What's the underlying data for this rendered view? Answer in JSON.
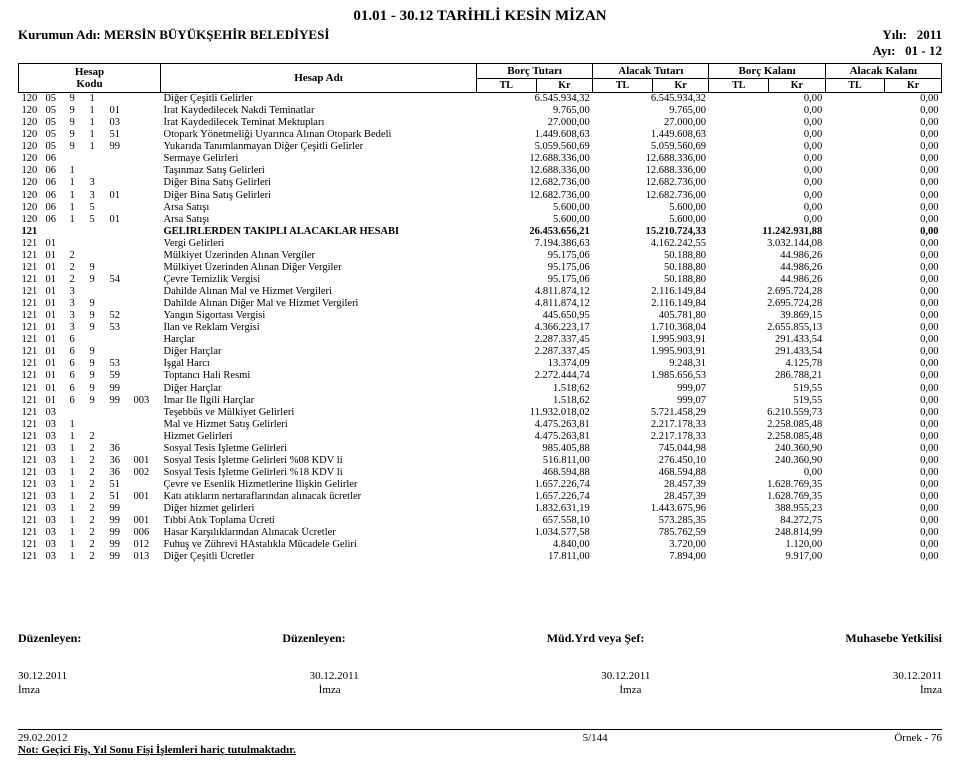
{
  "header": {
    "title": "01.01 - 30.12 TARİHLİ KESİN MİZAN",
    "year_label": "Yılı:",
    "year_value": "2011",
    "kurum_label": "Kurumun Adı:",
    "kurum_value": "MERSİN BÜYÜKŞEHİR BELEDİYESİ",
    "ay_label": "Ayı:",
    "ay_value": "01 - 12"
  },
  "columns": {
    "hesap_kodu": "Hesap\nKodu",
    "hesap_adi": "Hesap Adı",
    "borc_tutari": "Borç Tutarı",
    "alacak_tutari": "Alacak Tutarı",
    "borc_kalani": "Borç Kalanı",
    "alacak_kalani": "Alacak Kalanı",
    "tl": "TL",
    "kr": "Kr"
  },
  "rows": [
    {
      "k": [
        "120",
        "05",
        "9",
        "1",
        "",
        ""
      ],
      "adi": "Diğer Çeşitli Gelirler",
      "v": [
        "6.545.934,32",
        "6.545.934,32",
        "0,00",
        "0,00"
      ]
    },
    {
      "k": [
        "120",
        "05",
        "9",
        "1",
        "01",
        ""
      ],
      "adi": "İrat Kaydedilecek Nakdi Teminatlar",
      "v": [
        "9.765,00",
        "9.765,00",
        "0,00",
        "0,00"
      ]
    },
    {
      "k": [
        "120",
        "05",
        "9",
        "1",
        "03",
        ""
      ],
      "adi": "İrat Kaydedilecek Teminat Mektupları",
      "v": [
        "27.000,00",
        "27.000,00",
        "0,00",
        "0,00"
      ]
    },
    {
      "k": [
        "120",
        "05",
        "9",
        "1",
        "51",
        ""
      ],
      "adi": "Otopark Yönetmeliği Uyarınca Alınan Otopark Bedeli",
      "v": [
        "1.449.608,63",
        "1.449.608,63",
        "0,00",
        "0,00"
      ]
    },
    {
      "k": [
        "120",
        "05",
        "9",
        "1",
        "99",
        ""
      ],
      "adi": "Yukarıda Tanımlanmayan Diğer Çeşitli Gelirler",
      "v": [
        "5.059.560,69",
        "5.059.560,69",
        "0,00",
        "0,00"
      ]
    },
    {
      "k": [
        "120",
        "06",
        "",
        "",
        "",
        ""
      ],
      "adi": "Sermaye Gelirleri",
      "v": [
        "12.688.336,00",
        "12.688.336,00",
        "0,00",
        "0,00"
      ]
    },
    {
      "k": [
        "120",
        "06",
        "1",
        "",
        "",
        ""
      ],
      "adi": "Taşınmaz Satış Gelirleri",
      "v": [
        "12.688.336,00",
        "12.688.336,00",
        "0,00",
        "0,00"
      ]
    },
    {
      "k": [
        "120",
        "06",
        "1",
        "3",
        "",
        ""
      ],
      "adi": "Diğer Bina Satış Gelirleri",
      "v": [
        "12.682.736,00",
        "12.682.736,00",
        "0,00",
        "0,00"
      ]
    },
    {
      "k": [
        "120",
        "06",
        "1",
        "3",
        "01",
        ""
      ],
      "adi": "Diğer Bina Satış Gelirleri",
      "v": [
        "12.682.736,00",
        "12.682.736,00",
        "0,00",
        "0,00"
      ]
    },
    {
      "k": [
        "120",
        "06",
        "1",
        "5",
        "",
        ""
      ],
      "adi": "Arsa Satışı",
      "v": [
        "5.600,00",
        "5.600,00",
        "0,00",
        "0,00"
      ]
    },
    {
      "k": [
        "120",
        "06",
        "1",
        "5",
        "01",
        ""
      ],
      "adi": "Arsa Satışı",
      "v": [
        "5.600,00",
        "5.600,00",
        "0,00",
        "0,00"
      ]
    },
    {
      "k": [
        "121",
        "",
        "",
        "",
        "",
        ""
      ],
      "adi": "GELİRLERDEN TAKİPLİ ALACAKLAR HESABI",
      "v": [
        "26.453.656,21",
        "15.210.724,33",
        "11.242.931,88",
        "0,00"
      ],
      "bold": true
    },
    {
      "k": [
        "121",
        "01",
        "",
        "",
        "",
        ""
      ],
      "adi": "Vergi Gelirleri",
      "v": [
        "7.194.386,63",
        "4.162.242,55",
        "3.032.144,08",
        "0,00"
      ]
    },
    {
      "k": [
        "121",
        "01",
        "2",
        "",
        "",
        ""
      ],
      "adi": "Mülkiyet Üzerinden Alınan Vergiler",
      "v": [
        "95.175,06",
        "50.188,80",
        "44.986,26",
        "0,00"
      ]
    },
    {
      "k": [
        "121",
        "01",
        "2",
        "9",
        "",
        ""
      ],
      "adi": "Mülkiyet Üzerinden Alınan Diğer Vergiler",
      "v": [
        "95.175,06",
        "50.188,80",
        "44.986,26",
        "0,00"
      ]
    },
    {
      "k": [
        "121",
        "01",
        "2",
        "9",
        "54",
        ""
      ],
      "adi": "Çevre Temizlik Vergisi",
      "v": [
        "95.175,06",
        "50.188,80",
        "44.986,26",
        "0,00"
      ]
    },
    {
      "k": [
        "121",
        "01",
        "3",
        "",
        "",
        ""
      ],
      "adi": "Dahilde Alınan Mal ve Hizmet Vergileri",
      "v": [
        "4.811.874,12",
        "2.116.149,84",
        "2.695.724,28",
        "0,00"
      ]
    },
    {
      "k": [
        "121",
        "01",
        "3",
        "9",
        "",
        ""
      ],
      "adi": "Dahilde Alınan Diğer Mal ve Hizmet Vergileri",
      "v": [
        "4.811.874,12",
        "2.116.149,84",
        "2.695.724,28",
        "0,00"
      ]
    },
    {
      "k": [
        "121",
        "01",
        "3",
        "9",
        "52",
        ""
      ],
      "adi": "Yangın Sigortası Vergisi",
      "v": [
        "445.650,95",
        "405.781,80",
        "39.869,15",
        "0,00"
      ]
    },
    {
      "k": [
        "121",
        "01",
        "3",
        "9",
        "53",
        ""
      ],
      "adi": "İlan ve Reklam Vergisi",
      "v": [
        "4.366.223,17",
        "1.710.368,04",
        "2.655.855,13",
        "0,00"
      ]
    },
    {
      "k": [
        "121",
        "01",
        "6",
        "",
        "",
        ""
      ],
      "adi": "Harçlar",
      "v": [
        "2.287.337,45",
        "1.995.903,91",
        "291.433,54",
        "0,00"
      ]
    },
    {
      "k": [
        "121",
        "01",
        "6",
        "9",
        "",
        ""
      ],
      "adi": "Diğer Harçlar",
      "v": [
        "2.287.337,45",
        "1.995.903,91",
        "291.433,54",
        "0,00"
      ]
    },
    {
      "k": [
        "121",
        "01",
        "6",
        "9",
        "53",
        ""
      ],
      "adi": "İşgal Harcı",
      "v": [
        "13.374,09",
        "9.248,31",
        "4.125,78",
        "0,00"
      ]
    },
    {
      "k": [
        "121",
        "01",
        "6",
        "9",
        "59",
        ""
      ],
      "adi": "Toptancı Hali Resmi",
      "v": [
        "2.272.444,74",
        "1.985.656,53",
        "286.788,21",
        "0,00"
      ]
    },
    {
      "k": [
        "121",
        "01",
        "6",
        "9",
        "99",
        ""
      ],
      "adi": "Diğer Harçlar",
      "v": [
        "1.518,62",
        "999,07",
        "519,55",
        "0,00"
      ]
    },
    {
      "k": [
        "121",
        "01",
        "6",
        "9",
        "99",
        "003"
      ],
      "adi": "İmar İle İlgili Harçlar",
      "v": [
        "1.518,62",
        "999,07",
        "519,55",
        "0,00"
      ]
    },
    {
      "k": [
        "121",
        "03",
        "",
        "",
        "",
        ""
      ],
      "adi": "Teşebbüs ve Mülkiyet Gelirleri",
      "v": [
        "11.932.018,02",
        "5.721.458,29",
        "6.210.559,73",
        "0,00"
      ]
    },
    {
      "k": [
        "121",
        "03",
        "1",
        "",
        "",
        ""
      ],
      "adi": "Mal ve Hizmet Satış Gelirleri",
      "v": [
        "4.475.263,81",
        "2.217.178,33",
        "2.258.085,48",
        "0,00"
      ]
    },
    {
      "k": [
        "121",
        "03",
        "1",
        "2",
        "",
        ""
      ],
      "adi": "Hizmet Gelirleri",
      "v": [
        "4.475.263,81",
        "2.217.178,33",
        "2.258.085,48",
        "0,00"
      ]
    },
    {
      "k": [
        "121",
        "03",
        "1",
        "2",
        "36",
        ""
      ],
      "adi": "Sosyal Tesis İşletme Gelirleri",
      "v": [
        "985.405,88",
        "745.044,98",
        "240.360,90",
        "0,00"
      ]
    },
    {
      "k": [
        "121",
        "03",
        "1",
        "2",
        "36",
        "001"
      ],
      "adi": "Sosyal Tesis İşletme Gelirleri %08 KDV li",
      "v": [
        "516.811,00",
        "276.450,10",
        "240.360,90",
        "0,00"
      ]
    },
    {
      "k": [
        "121",
        "03",
        "1",
        "2",
        "36",
        "002"
      ],
      "adi": "Sosyal Tesis İşletme Gelirleri %18 KDV li",
      "v": [
        "468.594,88",
        "468.594,88",
        "0,00",
        "0,00"
      ]
    },
    {
      "k": [
        "121",
        "03",
        "1",
        "2",
        "51",
        ""
      ],
      "adi": "Çevre ve Esenlik Hizmetlerine İlişkin Gelirler",
      "v": [
        "1.657.226,74",
        "28.457,39",
        "1.628.769,35",
        "0,00"
      ]
    },
    {
      "k": [
        "121",
        "03",
        "1",
        "2",
        "51",
        "001"
      ],
      "adi": "Katı atıkların nertaraflarından alınacak ücretler",
      "v": [
        "1.657.226,74",
        "28.457,39",
        "1.628.769,35",
        "0,00"
      ]
    },
    {
      "k": [
        "121",
        "03",
        "1",
        "2",
        "99",
        ""
      ],
      "adi": "Diğer hizmet gelirleri",
      "v": [
        "1.832.631,19",
        "1.443.675,96",
        "388.955,23",
        "0,00"
      ]
    },
    {
      "k": [
        "121",
        "03",
        "1",
        "2",
        "99",
        "001"
      ],
      "adi": "Tıbbi Atık Toplama Ücreti",
      "v": [
        "657.558,10",
        "573.285,35",
        "84.272,75",
        "0,00"
      ]
    },
    {
      "k": [
        "121",
        "03",
        "1",
        "2",
        "99",
        "006"
      ],
      "adi": "Hasar Karşılıklarından Alınacak Ücretler",
      "v": [
        "1.034.577,58",
        "785.762,59",
        "248.814,99",
        "0,00"
      ]
    },
    {
      "k": [
        "121",
        "03",
        "1",
        "2",
        "99",
        "012"
      ],
      "adi": "Fuhuş ve Zührevi HAstalıkla Mücadele Geliri",
      "v": [
        "4.840,00",
        "3.720,00",
        "1.120,00",
        "0,00"
      ]
    },
    {
      "k": [
        "121",
        "03",
        "1",
        "2",
        "99",
        "013"
      ],
      "adi": "Diğer Çeşitli Ücretler",
      "v": [
        "17.811,00",
        "7.894,00",
        "9.917,00",
        "0,00"
      ]
    }
  ],
  "sign": {
    "duzenleyen": "Düzenleyen:",
    "mud": "Müd.Yrd veya Şef:",
    "muhasebe": "Muhasebe Yetkilisi",
    "date": "30.12.2011",
    "imza": "İmza"
  },
  "footer": {
    "date": "29.02.2012",
    "page": "5/144",
    "ornek": "Örnek - 76",
    "note": "Not: Geçici Fiş, Yıl Sonu Fişi İşlemleri hariç tutulmaktadır."
  }
}
